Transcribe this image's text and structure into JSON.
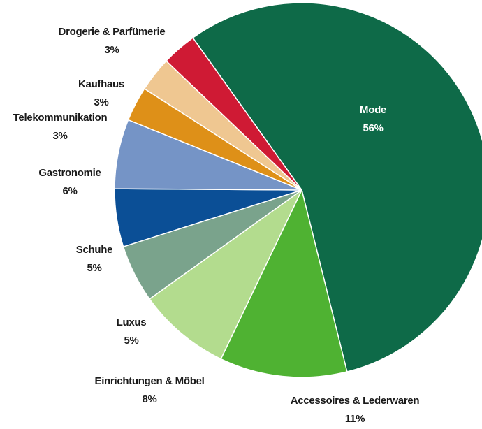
{
  "chart_data": {
    "type": "pie",
    "title": "",
    "slices": [
      {
        "label": "Mode",
        "percent_label": "56%",
        "value": 56,
        "color": "#0e6a48",
        "label_color": "#ffffff"
      },
      {
        "label": "Accessoires & Lederwaren",
        "percent_label": "11%",
        "value": 11,
        "color": "#4fb232",
        "label_color": "#1a1a1a"
      },
      {
        "label": "Einrichtungen & Möbel",
        "percent_label": "8%",
        "value": 8,
        "color": "#b3dc8e",
        "label_color": "#1a1a1a"
      },
      {
        "label": "Luxus",
        "percent_label": "5%",
        "value": 5,
        "color": "#7aa38c",
        "label_color": "#1a1a1a"
      },
      {
        "label": "Schuhe",
        "percent_label": "5%",
        "value": 5,
        "color": "#0b4f96",
        "label_color": "#1a1a1a"
      },
      {
        "label": "Gastronomie",
        "percent_label": "6%",
        "value": 6,
        "color": "#7594c6",
        "label_color": "#1a1a1a"
      },
      {
        "label": "Telekommunikation",
        "percent_label": "3%",
        "value": 3,
        "color": "#de9018",
        "label_color": "#1a1a1a"
      },
      {
        "label": "Kaufhaus",
        "percent_label": "3%",
        "value": 3,
        "color": "#efc791",
        "label_color": "#1a1a1a"
      },
      {
        "label": "Drogerie & Parfümerie",
        "percent_label": "3%",
        "value": 3,
        "color": "#cf1a34",
        "label_color": "#1a1a1a"
      }
    ],
    "legend": "none"
  }
}
